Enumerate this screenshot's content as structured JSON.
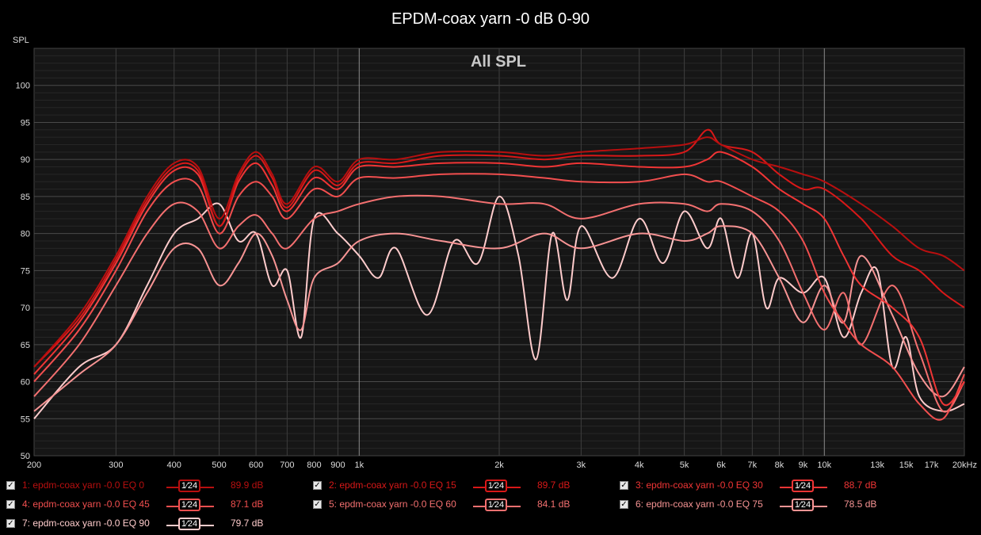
{
  "chart_data": {
    "type": "line",
    "title": "EPDM-coax yarn -0 dB 0-90",
    "subtitle": "All SPL",
    "ylabel": "SPL",
    "xlabel": "",
    "x_scale": "log",
    "xlim": [
      200,
      20000
    ],
    "ylim": [
      50,
      105
    ],
    "grid": true,
    "x_tick_labels": [
      {
        "v": 200,
        "t": "200"
      },
      {
        "v": 300,
        "t": "300"
      },
      {
        "v": 400,
        "t": "400"
      },
      {
        "v": 500,
        "t": "500"
      },
      {
        "v": 600,
        "t": "600"
      },
      {
        "v": 700,
        "t": "700"
      },
      {
        "v": 800,
        "t": "800"
      },
      {
        "v": 900,
        "t": "900"
      },
      {
        "v": 1000,
        "t": "1k"
      },
      {
        "v": 2000,
        "t": "2k"
      },
      {
        "v": 3000,
        "t": "3k"
      },
      {
        "v": 4000,
        "t": "4k"
      },
      {
        "v": 5000,
        "t": "5k"
      },
      {
        "v": 6000,
        "t": "6k"
      },
      {
        "v": 7000,
        "t": "7k"
      },
      {
        "v": 8000,
        "t": "8k"
      },
      {
        "v": 9000,
        "t": "9k"
      },
      {
        "v": 10000,
        "t": "10k"
      },
      {
        "v": 13000,
        "t": "13k"
      },
      {
        "v": 15000,
        "t": "15k"
      },
      {
        "v": 17000,
        "t": "17k"
      },
      {
        "v": 20000,
        "t": "20kHz"
      }
    ],
    "y_tick_labels": [
      "50",
      "55",
      "60",
      "65",
      "70",
      "75",
      "80",
      "85",
      "90",
      "95",
      "100"
    ],
    "series": [
      {
        "name": "1: epdm-coax yarn -0.0 EQ 0",
        "color": "#b80f0f",
        "value": "89.9 dB",
        "x": [
          200,
          250,
          300,
          350,
          400,
          450,
          500,
          550,
          600,
          650,
          700,
          800,
          900,
          1000,
          1200,
          1500,
          2000,
          2500,
          3000,
          4000,
          5000,
          5600,
          6000,
          7000,
          8000,
          9000,
          10000,
          12000,
          14000,
          16000,
          18000,
          20000
        ],
        "y": [
          62,
          69,
          77,
          85,
          89.5,
          89,
          82,
          88,
          91,
          88,
          84,
          89,
          87,
          90,
          90,
          91,
          91,
          90.5,
          91,
          91.5,
          92,
          93,
          92,
          90,
          89,
          88,
          87,
          84,
          81,
          78,
          77,
          75
        ]
      },
      {
        "name": "2: epdm-coax yarn -0.0 EQ 15",
        "color": "#d81818",
        "value": "89.7 dB",
        "x": [
          200,
          250,
          300,
          350,
          400,
          450,
          500,
          550,
          600,
          650,
          700,
          800,
          900,
          1000,
          1200,
          1500,
          2000,
          2500,
          3000,
          4000,
          5000,
          5600,
          6000,
          7000,
          8000,
          9000,
          10000,
          12000,
          14000,
          16000,
          18000,
          20000
        ],
        "y": [
          62,
          68.5,
          76.5,
          84.5,
          89,
          88.5,
          81,
          87.5,
          90.5,
          87.5,
          83.5,
          88.5,
          86.5,
          89.5,
          89.5,
          90.5,
          90.5,
          90,
          90.5,
          90.5,
          91,
          94,
          92,
          91,
          88,
          86,
          86,
          82,
          77,
          75,
          72,
          70
        ]
      },
      {
        "name": "3: epdm-coax yarn -0.0 EQ 30",
        "color": "#f03535",
        "value": "88.7 dB",
        "x": [
          200,
          250,
          300,
          350,
          400,
          450,
          500,
          550,
          600,
          650,
          700,
          800,
          900,
          1000,
          1200,
          1500,
          2000,
          2500,
          3000,
          4000,
          5000,
          5600,
          6000,
          7000,
          8000,
          9000,
          10000,
          11000,
          12000,
          14000,
          16000,
          18000,
          20000
        ],
        "y": [
          61,
          68,
          76,
          84,
          88.5,
          88,
          81,
          87,
          89.5,
          86.5,
          83,
          87.5,
          86,
          89,
          89,
          89.5,
          89.5,
          89,
          89.5,
          89,
          89,
          90,
          91,
          89,
          86,
          84,
          82,
          77,
          73,
          70,
          66,
          57,
          60
        ]
      },
      {
        "name": "4: epdm-coax yarn -0.0 EQ 45",
        "color": "#f24f4f",
        "value": "87.1 dB",
        "x": [
          200,
          250,
          300,
          350,
          400,
          450,
          500,
          550,
          600,
          650,
          700,
          800,
          900,
          1000,
          1200,
          1500,
          2000,
          2500,
          3000,
          4000,
          5000,
          5600,
          6000,
          7000,
          8000,
          9000,
          10000,
          11000,
          12000,
          14000,
          16000,
          18000,
          20000
        ],
        "y": [
          60,
          67,
          75,
          83,
          87,
          86.5,
          80,
          85,
          87,
          85,
          82,
          86,
          85,
          87.5,
          87.5,
          88,
          88,
          87.5,
          87,
          87,
          88,
          87,
          87,
          85,
          83,
          79,
          72,
          68,
          65,
          62,
          57,
          55,
          61
        ]
      },
      {
        "name": "5: epdm-coax yarn -0.0 EQ 60",
        "color": "#f47070",
        "value": "84.1 dB",
        "x": [
          200,
          250,
          300,
          350,
          400,
          450,
          500,
          550,
          600,
          650,
          700,
          800,
          900,
          1000,
          1200,
          1500,
          2000,
          2500,
          3000,
          4000,
          5000,
          5600,
          6000,
          7000,
          8000,
          9000,
          10000,
          11000,
          12000,
          14000,
          16000,
          18000,
          20000
        ],
        "y": [
          58,
          65,
          73,
          80,
          84,
          83,
          78,
          81,
          82.5,
          80,
          78,
          82,
          83,
          84,
          85,
          85,
          84,
          84,
          82,
          84,
          84,
          83,
          84,
          83,
          79,
          72,
          67,
          72,
          65,
          73,
          64,
          56,
          60
        ]
      },
      {
        "name": "6: epdm-coax yarn -0.0 EQ 75",
        "color": "#f79494",
        "value": "78.5 dB",
        "x": [
          200,
          250,
          300,
          350,
          400,
          450,
          500,
          550,
          600,
          650,
          700,
          750,
          800,
          900,
          1000,
          1200,
          1500,
          2000,
          2500,
          3000,
          4000,
          5000,
          5600,
          6000,
          7000,
          8000,
          9000,
          10000,
          11000,
          12000,
          14000,
          16000,
          18000,
          20000
        ],
        "y": [
          56,
          61,
          65,
          72,
          78,
          78,
          73,
          76,
          80,
          77,
          71,
          67,
          74,
          76,
          79,
          80,
          79,
          78,
          80,
          78,
          80,
          79,
          80,
          81,
          80,
          74,
          68,
          73,
          68,
          77,
          69,
          61,
          58,
          62
        ]
      },
      {
        "name": "7: epdm-coax yarn -0.0 EQ 90",
        "color": "#ffcccc",
        "value": "79.7 dB",
        "x": [
          200,
          250,
          300,
          350,
          400,
          450,
          500,
          550,
          600,
          650,
          700,
          750,
          800,
          900,
          1000,
          1100,
          1200,
          1400,
          1600,
          1800,
          2000,
          2200,
          2400,
          2600,
          2800,
          3000,
          3500,
          4000,
          4500,
          5000,
          5600,
          6000,
          6500,
          7000,
          7500,
          8000,
          9000,
          10000,
          11000,
          12000,
          13000,
          14000,
          15000,
          16000,
          18000,
          20000
        ],
        "y": [
          55,
          62,
          65,
          73,
          80,
          82,
          84,
          79,
          80,
          73,
          75,
          66,
          82,
          80,
          77,
          74,
          78,
          69,
          79,
          76,
          85,
          77,
          63,
          80,
          71,
          81,
          74,
          82,
          76,
          83,
          78,
          82,
          74,
          80,
          70,
          74,
          72,
          74,
          66,
          72,
          75,
          62,
          66,
          58,
          56,
          57
        ]
      }
    ]
  },
  "legend": {
    "smoothing_label": "1⁄24",
    "check_glyph": "✓"
  }
}
